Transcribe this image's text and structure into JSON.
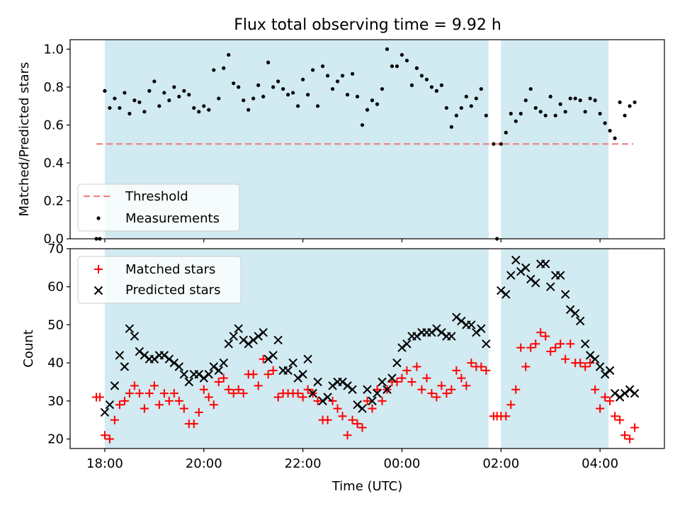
{
  "figure": {
    "title": "Flux total observing time = 9.92 h"
  },
  "colors": {
    "shade": "#add8e6",
    "threshold": "#f08080",
    "matched": "#ff0000",
    "predicted": "#000000",
    "measurement": "#000000"
  },
  "chart_data": [
    {
      "type": "scatter",
      "panel": "top",
      "title": "Flux total observing time = 9.92 h",
      "xlabel": "",
      "ylabel": "Matched/Predicted stars",
      "xlim_hours": [
        17.3,
        29.3
      ],
      "ylim": [
        0.0,
        1.05
      ],
      "yticks": [
        0.0,
        0.2,
        0.4,
        0.6,
        0.8,
        1.0
      ],
      "ytick_labels": [
        "0.0",
        "0.2",
        "0.4",
        "0.6",
        "0.8",
        "1.0"
      ],
      "shaded_intervals_hours": [
        [
          18.0,
          25.75
        ],
        [
          26.0,
          28.17
        ]
      ],
      "threshold": {
        "name": "Threshold",
        "y": 0.5,
        "x_range_hours": [
          17.83,
          28.67
        ]
      },
      "legend": {
        "placement": "lower-left",
        "entries": [
          "Threshold",
          "Measurements"
        ]
      },
      "series": [
        {
          "name": "Measurements",
          "x_hours": [
            17.83,
            17.9,
            18.0,
            18.1,
            18.2,
            18.3,
            18.4,
            18.5,
            18.6,
            18.7,
            18.8,
            18.9,
            19.0,
            19.1,
            19.2,
            19.3,
            19.4,
            19.5,
            19.6,
            19.7,
            19.8,
            19.9,
            20.0,
            20.1,
            20.2,
            20.3,
            20.4,
            20.5,
            20.6,
            20.7,
            20.8,
            20.9,
            21.0,
            21.1,
            21.2,
            21.3,
            21.4,
            21.5,
            21.6,
            21.7,
            21.8,
            21.9,
            22.0,
            22.1,
            22.2,
            22.3,
            22.4,
            22.5,
            22.6,
            22.7,
            22.8,
            22.9,
            23.0,
            23.1,
            23.2,
            23.3,
            23.4,
            23.5,
            23.6,
            23.7,
            23.8,
            23.9,
            24.0,
            24.1,
            24.2,
            24.3,
            24.4,
            24.5,
            24.6,
            24.7,
            24.8,
            24.9,
            25.0,
            25.1,
            25.2,
            25.3,
            25.4,
            25.5,
            25.6,
            25.7,
            25.85,
            25.92,
            26.0,
            26.1,
            26.2,
            26.3,
            26.4,
            26.5,
            26.6,
            26.7,
            26.8,
            26.9,
            27.0,
            27.1,
            27.2,
            27.3,
            27.4,
            27.5,
            27.6,
            27.7,
            27.8,
            27.9,
            28.0,
            28.1,
            28.2,
            28.3,
            28.4,
            28.5,
            28.6,
            28.7
          ],
          "y": [
            0.0,
            0.0,
            0.78,
            0.69,
            0.74,
            0.69,
            0.77,
            0.66,
            0.73,
            0.72,
            0.67,
            0.78,
            0.83,
            0.7,
            0.77,
            0.73,
            0.8,
            0.75,
            0.78,
            0.76,
            0.69,
            0.67,
            0.7,
            0.68,
            0.89,
            0.74,
            0.9,
            0.97,
            0.82,
            0.8,
            0.73,
            0.68,
            0.74,
            0.81,
            0.75,
            0.93,
            0.8,
            0.83,
            0.79,
            0.76,
            0.77,
            0.7,
            0.84,
            0.76,
            0.89,
            0.7,
            0.91,
            0.86,
            0.79,
            0.83,
            0.86,
            0.76,
            0.87,
            0.75,
            0.6,
            0.68,
            0.73,
            0.71,
            0.79,
            1.0,
            0.91,
            0.91,
            0.97,
            0.94,
            0.81,
            0.9,
            0.86,
            0.84,
            0.8,
            0.78,
            0.81,
            0.69,
            0.59,
            0.65,
            0.69,
            0.75,
            0.7,
            0.74,
            0.79,
            0.65,
            0.5,
            0.0,
            0.5,
            0.56,
            0.66,
            0.62,
            0.66,
            0.73,
            0.79,
            0.69,
            0.67,
            0.65,
            0.75,
            0.65,
            0.71,
            0.67,
            0.74,
            0.74,
            0.73,
            0.67,
            0.74,
            0.73,
            0.66,
            0.61,
            0.57,
            0.53,
            0.72,
            0.65,
            0.7,
            0.72
          ]
        }
      ]
    },
    {
      "type": "scatter",
      "panel": "bottom",
      "xlabel": "Time (UTC)",
      "ylabel": "Count",
      "xlim_hours": [
        17.3,
        29.3
      ],
      "ylim": [
        17.5,
        70
      ],
      "xticks_hours": [
        18,
        20,
        22,
        24,
        26,
        28
      ],
      "xtick_labels": [
        "18:00",
        "20:00",
        "22:00",
        "00:00",
        "02:00",
        "04:00"
      ],
      "yticks": [
        20,
        30,
        40,
        50,
        60,
        70
      ],
      "ytick_labels": [
        "20",
        "30",
        "40",
        "50",
        "60",
        "70"
      ],
      "shaded_intervals_hours": [
        [
          18.0,
          25.75
        ],
        [
          26.0,
          28.17
        ]
      ],
      "legend": {
        "placement": "upper-left",
        "entries": [
          "Matched stars",
          "Predicted stars"
        ]
      },
      "series": [
        {
          "name": "Matched stars",
          "marker": "plus",
          "x_hours": [
            17.83,
            17.9,
            18.0,
            18.1,
            18.2,
            18.3,
            18.4,
            18.5,
            18.6,
            18.7,
            18.8,
            18.9,
            19.0,
            19.1,
            19.2,
            19.3,
            19.4,
            19.5,
            19.6,
            19.7,
            19.8,
            19.9,
            20.0,
            20.1,
            20.2,
            20.3,
            20.4,
            20.5,
            20.6,
            20.7,
            20.8,
            20.9,
            21.0,
            21.1,
            21.2,
            21.3,
            21.4,
            21.5,
            21.6,
            21.7,
            21.8,
            21.9,
            22.0,
            22.1,
            22.2,
            22.3,
            22.4,
            22.5,
            22.6,
            22.7,
            22.8,
            22.9,
            23.0,
            23.1,
            23.2,
            23.3,
            23.4,
            23.5,
            23.6,
            23.7,
            23.8,
            23.9,
            24.0,
            24.1,
            24.2,
            24.3,
            24.4,
            24.5,
            24.6,
            24.7,
            24.8,
            24.9,
            25.0,
            25.1,
            25.2,
            25.3,
            25.4,
            25.5,
            25.6,
            25.7,
            25.85,
            25.92,
            26.0,
            26.1,
            26.2,
            26.3,
            26.4,
            26.5,
            26.6,
            26.7,
            26.8,
            26.9,
            27.0,
            27.1,
            27.2,
            27.3,
            27.4,
            27.5,
            27.6,
            27.7,
            27.8,
            27.9,
            28.0,
            28.1,
            28.2,
            28.3,
            28.4,
            28.5,
            28.6,
            28.7
          ],
          "y": [
            31,
            31,
            21,
            20,
            25,
            29,
            30,
            32,
            34,
            32,
            28,
            32,
            34,
            29,
            32,
            30,
            32,
            30,
            28,
            24,
            24,
            27,
            33,
            31,
            29,
            35,
            36,
            33,
            32,
            33,
            32,
            37,
            37,
            34,
            41,
            37,
            38,
            31,
            32,
            32,
            32,
            32,
            31,
            33,
            32,
            30,
            25,
            25,
            30,
            28,
            26,
            21,
            25,
            24,
            23,
            30,
            28,
            33,
            30,
            33,
            35,
            35,
            36,
            38,
            35,
            39,
            33,
            36,
            32,
            31,
            34,
            32,
            33,
            38,
            36,
            34,
            40,
            39,
            39,
            38,
            26,
            26,
            26,
            26,
            29,
            33,
            44,
            39,
            44,
            45,
            48,
            47,
            43,
            44,
            45,
            41,
            45,
            40,
            40,
            39,
            40,
            33,
            28,
            31,
            30,
            26,
            25,
            21,
            20,
            23
          ]
        },
        {
          "name": "Predicted stars",
          "marker": "x",
          "x_hours": [
            18.0,
            18.1,
            18.2,
            18.3,
            18.4,
            18.5,
            18.6,
            18.7,
            18.8,
            18.9,
            19.0,
            19.1,
            19.2,
            19.3,
            19.4,
            19.5,
            19.6,
            19.7,
            19.8,
            19.9,
            20.0,
            20.1,
            20.2,
            20.3,
            20.4,
            20.5,
            20.6,
            20.7,
            20.8,
            20.9,
            21.0,
            21.1,
            21.2,
            21.3,
            21.4,
            21.5,
            21.6,
            21.7,
            21.8,
            21.9,
            22.0,
            22.1,
            22.2,
            22.3,
            22.4,
            22.5,
            22.6,
            22.7,
            22.8,
            22.9,
            23.0,
            23.1,
            23.2,
            23.3,
            23.4,
            23.5,
            23.6,
            23.7,
            23.8,
            23.9,
            24.0,
            24.1,
            24.2,
            24.3,
            24.4,
            24.5,
            24.6,
            24.7,
            24.8,
            24.9,
            25.0,
            25.1,
            25.2,
            25.3,
            25.4,
            25.5,
            25.6,
            25.7,
            26.0,
            26.1,
            26.2,
            26.3,
            26.4,
            26.5,
            26.6,
            26.7,
            26.8,
            26.9,
            27.0,
            27.1,
            27.2,
            27.3,
            27.4,
            27.5,
            27.6,
            27.7,
            27.8,
            27.9,
            28.0,
            28.1,
            28.2,
            28.3,
            28.4,
            28.5,
            28.6,
            28.7
          ],
          "y": [
            27,
            29,
            34,
            42,
            39,
            49,
            47,
            43,
            42,
            41,
            41,
            42,
            42,
            41,
            40,
            39,
            37,
            35,
            37,
            37,
            36,
            37,
            39,
            38,
            40,
            45,
            47,
            49,
            46,
            45,
            46,
            47,
            48,
            41,
            42,
            46,
            38,
            38,
            40,
            36,
            37,
            41,
            32,
            35,
            30,
            31,
            34,
            35,
            35,
            34,
            33,
            29,
            28,
            33,
            30,
            32,
            35,
            33,
            36,
            40,
            44,
            45,
            47,
            47,
            48,
            48,
            48,
            49,
            48,
            47,
            47,
            52,
            51,
            50,
            50,
            48,
            49,
            45,
            59,
            58,
            63,
            67,
            64,
            65,
            62,
            61,
            66,
            66,
            60,
            63,
            63,
            58,
            54,
            53,
            51,
            45,
            42,
            41,
            39,
            37,
            38,
            32,
            31,
            32,
            33,
            32
          ]
        }
      ]
    }
  ]
}
